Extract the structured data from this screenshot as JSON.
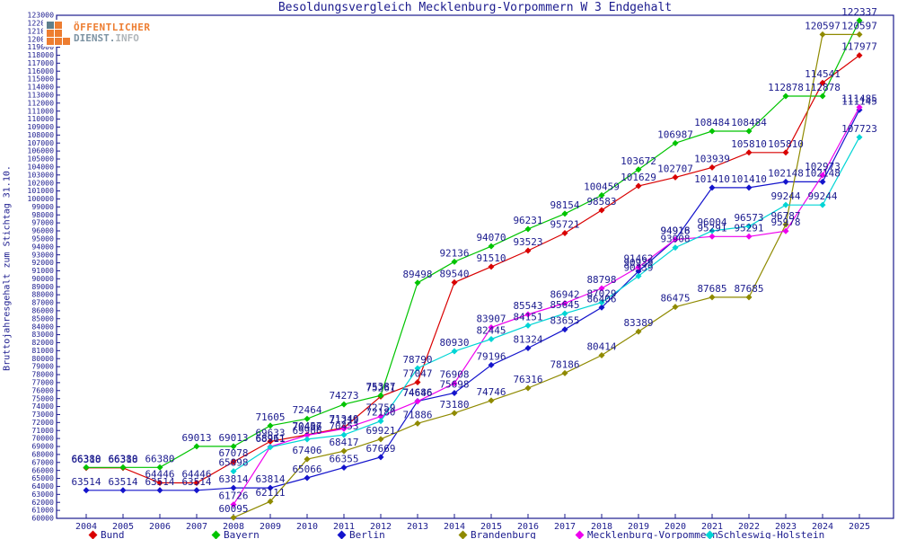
{
  "title": "Besoldungsvergleich Mecklenburg-Vorpommern W 3 Endgehalt",
  "logo": {
    "line1": "ÖFFENTLICHER",
    "line2_name": "DIENST.",
    "line2_suffix": "INFO"
  },
  "colors": {
    "axis": "#1b1b8e",
    "label_text": "#1b1b8e",
    "background": "#ffffff",
    "logo_orange": "#ed7d31",
    "logo_gray": "#7d93a3"
  },
  "chart_data": {
    "type": "line",
    "title": "Besoldungsvergleich Mecklenburg-Vorpommern W 3 Endgehalt",
    "ylabel": "Bruttojahresgehalt zum Stichtag 31.10.",
    "xlabel": "",
    "ylim": [
      60000,
      123000
    ],
    "ytick_step": 1000,
    "grid": false,
    "point_labels": true,
    "legend_position": "bottom",
    "x": [
      2004,
      2005,
      2006,
      2007,
      2008,
      2009,
      2010,
      2011,
      2012,
      2013,
      2014,
      2015,
      2016,
      2017,
      2018,
      2019,
      2020,
      2021,
      2022,
      2023,
      2024,
      2025
    ],
    "series": [
      {
        "name": "Bund",
        "color": "#d90000",
        "values": [
          66318,
          66318,
          64446,
          64446,
          67078,
          69633,
          70457,
          71349,
          75261,
          77047,
          89540,
          91510,
          93523,
          95721,
          98583,
          101629,
          102707,
          103939,
          105810,
          105810,
          114541,
          117977
        ]
      },
      {
        "name": "Bayern",
        "color": "#00c400",
        "values": [
          66380,
          66380,
          66380,
          69013,
          69013,
          71605,
          72464,
          74273,
          75387,
          89498,
          92136,
          94070,
          96231,
          98154,
          100459,
          103672,
          106987,
          108484,
          108484,
          112878,
          112878,
          122337
        ]
      },
      {
        "name": "Berlin",
        "color": "#1414cc",
        "values": [
          63514,
          63514,
          63514,
          63514,
          63814,
          63814,
          65066,
          66355,
          67669,
          74686,
          75698,
          79196,
          81324,
          83655,
          86406,
          90939,
          94916,
          101410,
          101410,
          102148,
          102148,
          111145
        ]
      },
      {
        "name": "Brandenburg",
        "color": "#8f8a00",
        "values": [
          null,
          null,
          null,
          null,
          60095,
          62111,
          67406,
          68417,
          69921,
          71886,
          73180,
          74746,
          76316,
          78186,
          80414,
          83389,
          86475,
          87685,
          87685,
          96787,
          120597,
          120597
        ]
      },
      {
        "name": "Mecklenburg-Vorpommern",
        "color": "#ee00ee",
        "values": [
          null,
          null,
          null,
          null,
          61726,
          68961,
          70406,
          71219,
          72759,
          74646,
          76908,
          83907,
          85543,
          86942,
          88798,
          91462,
          94918,
          95291,
          95291,
          95978,
          102973,
          111485
        ]
      },
      {
        "name": "Schleswig-Holstein",
        "color": "#00d5d5",
        "values": [
          null,
          null,
          null,
          null,
          65898,
          68911,
          69906,
          70453,
          72180,
          78790,
          80930,
          82445,
          84151,
          85645,
          87029,
          90339,
          93908,
          96004,
          96573,
          99244,
          99244,
          107723
        ]
      }
    ]
  }
}
